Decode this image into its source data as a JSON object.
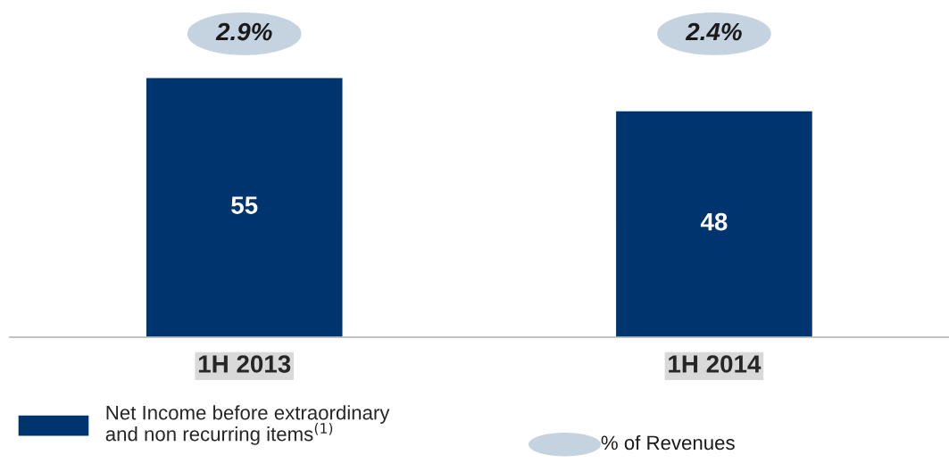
{
  "chart_data": {
    "type": "bar",
    "categories": [
      "1H 2013",
      "1H 2014"
    ],
    "series": [
      {
        "name": "Net Income before extraordinary\nand non recurring items$^{(1)}$",
        "color": "#00346e",
        "values": [
          55,
          48
        ]
      }
    ],
    "annotations": [
      "2.9%",
      "2.4%",
      "% of Revenues"
    ],
    "data_labels": true,
    "legend": "bottom",
    "tick_labels": "x",
    "grid": false
  }
}
